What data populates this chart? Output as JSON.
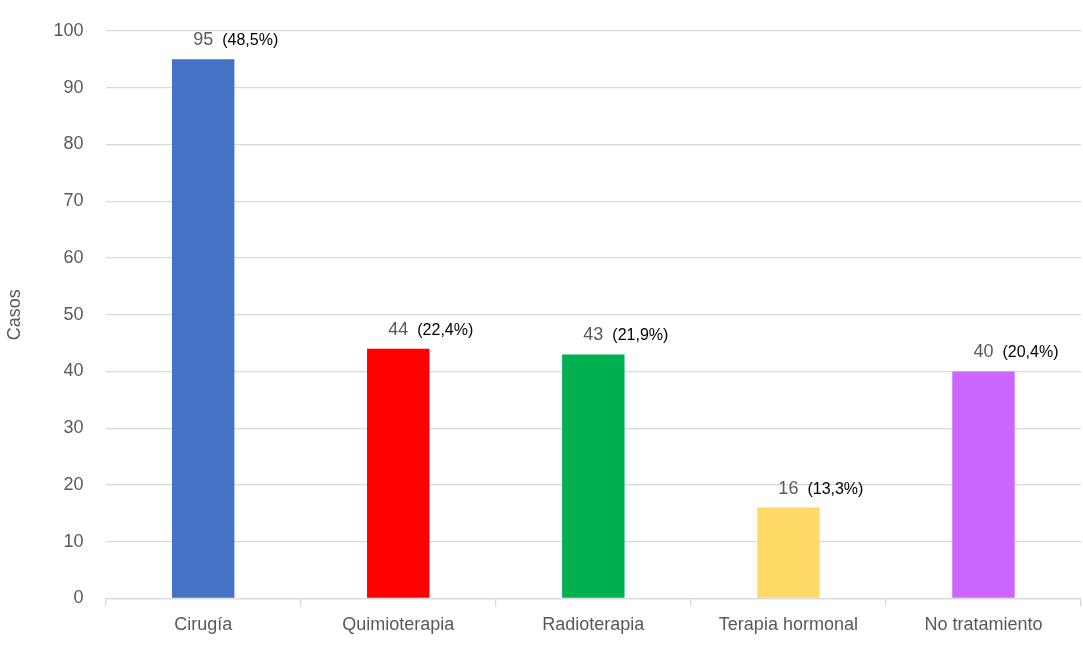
{
  "chart_data": {
    "type": "bar",
    "ylabel": "Casos",
    "categories": [
      "Cirugía",
      "Quimioterapia",
      "Radioterapia",
      "Terapia hormonal",
      "No tratamiento"
    ],
    "values": [
      95,
      44,
      43,
      16,
      40
    ],
    "colors": [
      "#4472c4",
      "#ff0000",
      "#00b050",
      "#ffd966",
      "#cc66ff"
    ],
    "ylim": [
      0,
      100
    ],
    "yticks": [
      0,
      10,
      20,
      30,
      40,
      50,
      60,
      70,
      80,
      90,
      100
    ],
    "grid": "y",
    "value_labels": [
      "95 (48,5%)",
      "44 (22,4%)",
      "43 (21,9%)",
      "16 (13,3%)",
      "40 (20,4%)"
    ]
  }
}
